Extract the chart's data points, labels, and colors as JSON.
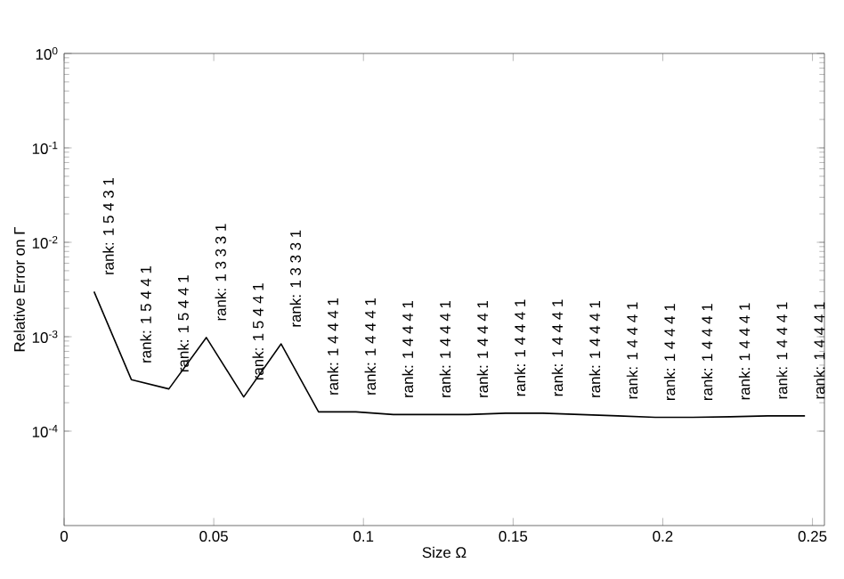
{
  "chart_data": {
    "type": "line",
    "xlabel": "Size Ω",
    "ylabel": "Relative Error on Γ",
    "x": [
      0.01,
      0.0225,
      0.035,
      0.0475,
      0.06,
      0.0725,
      0.085,
      0.0975,
      0.11,
      0.1225,
      0.135,
      0.1475,
      0.16,
      0.1725,
      0.185,
      0.1975,
      0.21,
      0.2225,
      0.235,
      0.2475
    ],
    "series": [
      {
        "color": "#000000",
        "values": [
          0.003,
          0.00035,
          0.00028,
          0.00098,
          0.00023,
          0.00084,
          0.00016,
          0.00016,
          0.00015,
          0.00015,
          0.00015,
          0.000155,
          0.000155,
          0.00015,
          0.000145,
          0.00014,
          0.00014,
          0.000142,
          0.000145,
          0.000145
        ]
      }
    ],
    "log": "y",
    "xlim": [
      0,
      0.254
    ],
    "ylim": [
      1e-05,
      1
    ],
    "xticks": [
      0,
      0.05,
      0.1,
      0.15,
      0.2,
      0.25
    ],
    "yticks": [
      {
        "value": 0.0001,
        "label": "10$^{-4}$"
      },
      {
        "value": 0.001,
        "label": "10$^{-3}$"
      },
      {
        "value": 0.01,
        "label": "10$^{-2}$"
      },
      {
        "value": 0.1,
        "label": "10$^{-1}$"
      },
      {
        "value": 1,
        "label": "10$^{0}$"
      }
    ],
    "grid": false,
    "marker": "none",
    "line_style": "solid",
    "annotations": [
      {
        "text": "rank: 1  5  4  3  1",
        "x": 0.01,
        "y": 0.003
      },
      {
        "text": "rank: 1  5  4  4  1",
        "x": 0.0225,
        "y": 0.00035
      },
      {
        "text": "rank: 1  5  4  4  1",
        "x": 0.035,
        "y": 0.00028
      },
      {
        "text": "rank: 1  3  3  3  1",
        "x": 0.0475,
        "y": 0.00098
      },
      {
        "text": "rank: 1  5  4  4  1",
        "x": 0.06,
        "y": 0.00023
      },
      {
        "text": "rank: 1  3  3  3  1",
        "x": 0.0725,
        "y": 0.00084
      },
      {
        "text": "rank: 1  4  4  4  1",
        "x": 0.085,
        "y": 0.00016
      },
      {
        "text": "rank: 1  4  4  4  1",
        "x": 0.0975,
        "y": 0.00016
      },
      {
        "text": "rank: 1  4  4  4  1",
        "x": 0.11,
        "y": 0.00015
      },
      {
        "text": "rank: 1  4  4  4  1",
        "x": 0.1225,
        "y": 0.00015
      },
      {
        "text": "rank: 1  4  4  4  1",
        "x": 0.135,
        "y": 0.00015
      },
      {
        "text": "rank: 1  4  4  4  1",
        "x": 0.1475,
        "y": 0.000155
      },
      {
        "text": "rank: 1  4  4  4  1",
        "x": 0.16,
        "y": 0.000155
      },
      {
        "text": "rank: 1  4  4  4  1",
        "x": 0.1725,
        "y": 0.00015
      },
      {
        "text": "rank: 1  4  4  4  1",
        "x": 0.185,
        "y": 0.000145
      },
      {
        "text": "rank: 1  4  4  4  1",
        "x": 0.1975,
        "y": 0.00014
      },
      {
        "text": "rank: 1  4  4  4  1",
        "x": 0.21,
        "y": 0.00014
      },
      {
        "text": "rank: 1  4  4  4  1",
        "x": 0.2225,
        "y": 0.000142
      },
      {
        "text": "rank: 1  4  4  4  1",
        "x": 0.235,
        "y": 0.000145
      },
      {
        "text": "rank: 1  4  4  4  1",
        "x": 0.2475,
        "y": 0.000145
      }
    ]
  }
}
